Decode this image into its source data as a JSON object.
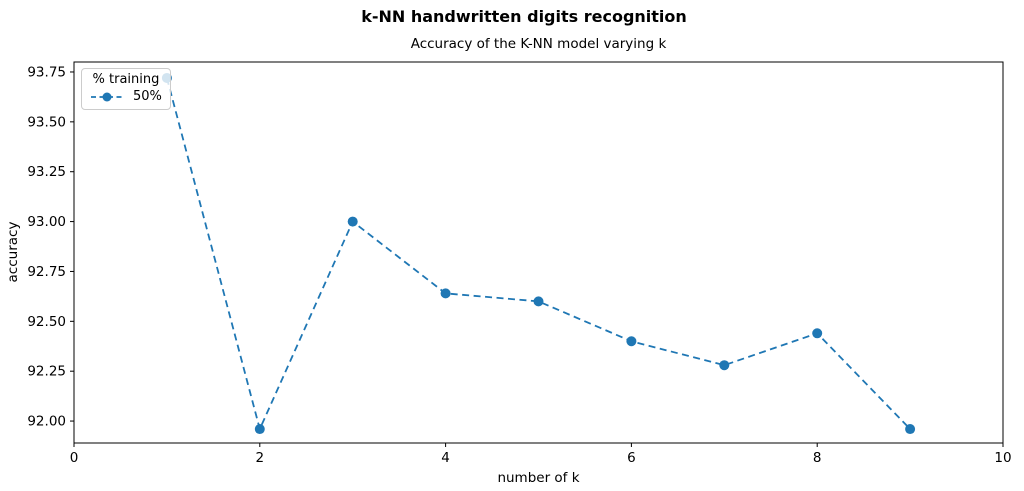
{
  "chart_data": {
    "type": "line",
    "title": "k-NN handwritten digits recognition",
    "subtitle": "Accuracy of the K-NN model varying k",
    "xlabel": "number of k",
    "ylabel": "accuracy",
    "legend_title": "% training",
    "legend_position": "upper left",
    "x": [
      1,
      2,
      3,
      4,
      5,
      6,
      7,
      8,
      9
    ],
    "series": [
      {
        "name": "50%",
        "values": [
          93.72,
          91.96,
          93.0,
          92.64,
          92.6,
          92.4,
          92.28,
          92.44,
          91.96
        ]
      }
    ],
    "xlim": [
      0,
      10
    ],
    "ylim": [
      91.89,
      93.8
    ],
    "xticks": [
      0,
      2,
      4,
      6,
      8,
      10
    ],
    "yticks": [
      92.0,
      92.25,
      92.5,
      92.75,
      93.0,
      93.25,
      93.5,
      93.75
    ],
    "grid": false,
    "line_style": "dashed",
    "marker": "circle",
    "colors": {
      "line": "#1f77b4",
      "spine": "#000000",
      "text": "#000000",
      "background": "#ffffff"
    }
  }
}
